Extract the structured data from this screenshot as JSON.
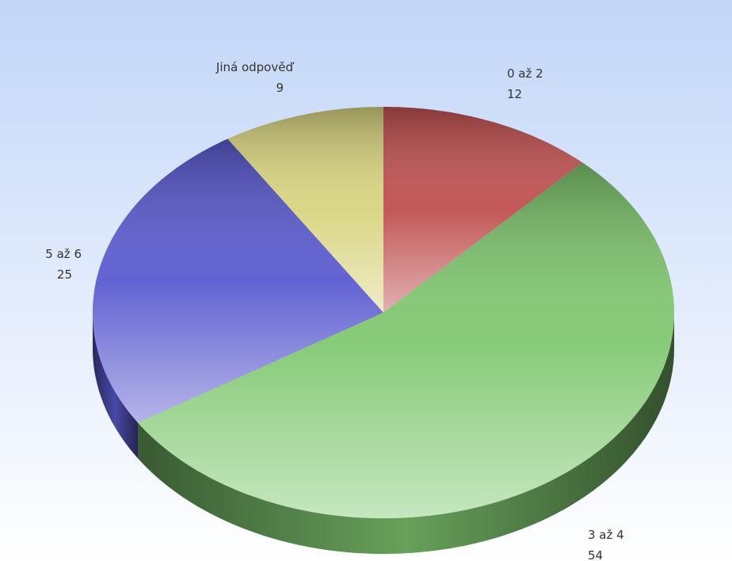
{
  "chart_data": {
    "type": "pie",
    "categories": [
      "0 až 2",
      "3 až 4",
      "5 až 6",
      "Jiná odpověď"
    ],
    "values": [
      12,
      54,
      25,
      9
    ],
    "colors": [
      "#c05050",
      "#80c870",
      "#5a5ad0",
      "#d8d480"
    ]
  }
}
